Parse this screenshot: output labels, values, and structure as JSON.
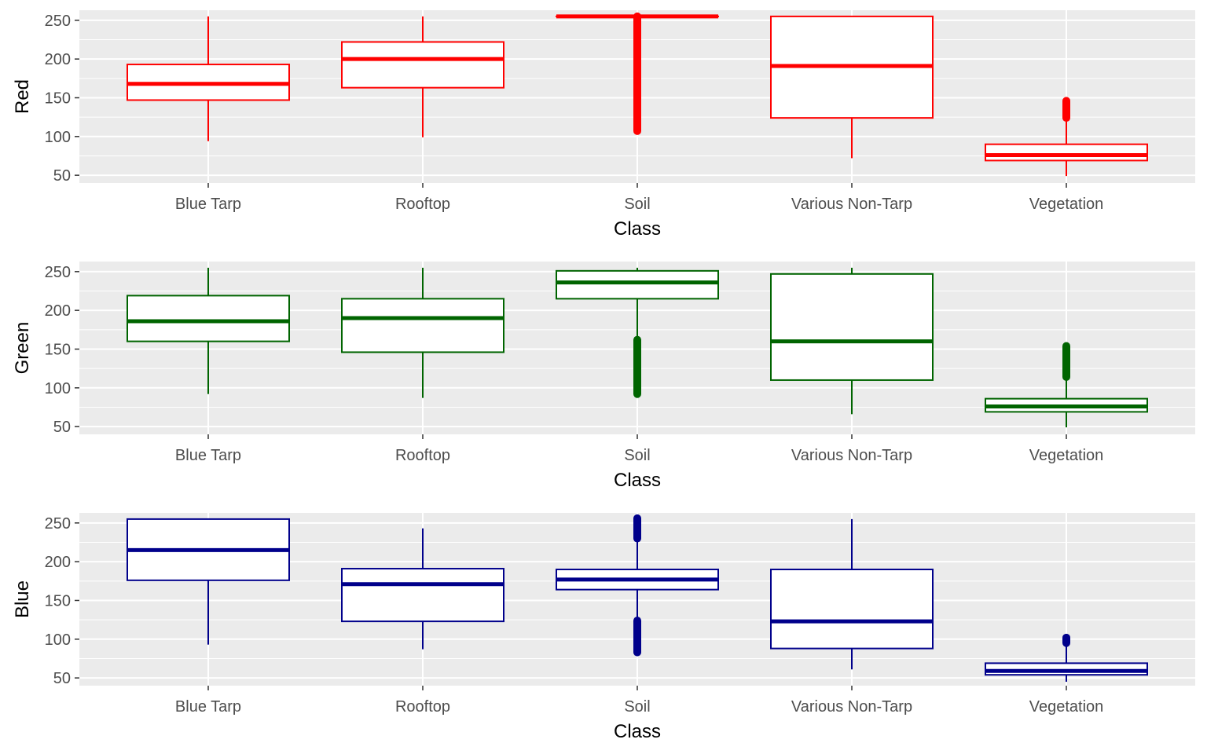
{
  "chart_data": [
    {
      "type": "box",
      "ylabel": "Red",
      "xlabel": "Class",
      "color": "#ff0000",
      "ylim": [
        40,
        263
      ],
      "yticks": [
        50,
        100,
        150,
        200,
        250
      ],
      "categories": [
        "Blue Tarp",
        "Rooftop",
        "Soil",
        "Various Non-Tarp",
        "Vegetation"
      ],
      "boxes": [
        {
          "min": 94,
          "q1": 147,
          "median": 168,
          "q3": 193,
          "max": 255,
          "outliers": null
        },
        {
          "min": 99,
          "q1": 163,
          "median": 200,
          "q3": 222,
          "max": 255,
          "outliers": null
        },
        {
          "min": 255,
          "q1": 255,
          "median": 255,
          "q3": 255,
          "max": 255,
          "outliers": [
            107,
            255
          ]
        },
        {
          "min": 72,
          "q1": 124,
          "median": 191,
          "q3": 255,
          "max": 255,
          "outliers": null
        },
        {
          "min": 49,
          "q1": 69,
          "median": 76,
          "q3": 90,
          "max": 122,
          "outliers": [
            124,
            146
          ]
        }
      ]
    },
    {
      "type": "box",
      "ylabel": "Green",
      "xlabel": "Class",
      "color": "#006400",
      "ylim": [
        40,
        263
      ],
      "yticks": [
        50,
        100,
        150,
        200,
        250
      ],
      "categories": [
        "Blue Tarp",
        "Rooftop",
        "Soil",
        "Various Non-Tarp",
        "Vegetation"
      ],
      "boxes": [
        {
          "min": 92,
          "q1": 160,
          "median": 186,
          "q3": 219,
          "max": 255,
          "outliers": null
        },
        {
          "min": 87,
          "q1": 146,
          "median": 190,
          "q3": 215,
          "max": 255,
          "outliers": null
        },
        {
          "min": 163,
          "q1": 215,
          "median": 236,
          "q3": 251,
          "max": 255,
          "outliers": [
            92,
            162
          ]
        },
        {
          "min": 66,
          "q1": 110,
          "median": 160,
          "q3": 247,
          "max": 255,
          "outliers": null
        },
        {
          "min": 49,
          "q1": 69,
          "median": 76,
          "q3": 86,
          "max": 112,
          "outliers": [
            114,
            154
          ]
        }
      ]
    },
    {
      "type": "box",
      "ylabel": "Blue",
      "xlabel": "Class",
      "color": "#00008b",
      "ylim": [
        40,
        263
      ],
      "yticks": [
        50,
        100,
        150,
        200,
        250
      ],
      "categories": [
        "Blue Tarp",
        "Rooftop",
        "Soil",
        "Various Non-Tarp",
        "Vegetation"
      ],
      "boxes": [
        {
          "min": 93,
          "q1": 176,
          "median": 215,
          "q3": 255,
          "max": 255,
          "outliers": null
        },
        {
          "min": 87,
          "q1": 123,
          "median": 171,
          "q3": 191,
          "max": 243,
          "outliers": null
        },
        {
          "min": 127,
          "q1": 164,
          "median": 177,
          "q3": 190,
          "max": 227,
          "outliers": [
            83,
            124,
            230,
            256
          ]
        },
        {
          "min": 61,
          "q1": 88,
          "median": 123,
          "q3": 190,
          "max": 255,
          "outliers": null
        },
        {
          "min": 45,
          "q1": 54,
          "median": 59,
          "q3": 69,
          "max": 91,
          "outliers": [
            95,
            102
          ]
        }
      ]
    }
  ]
}
